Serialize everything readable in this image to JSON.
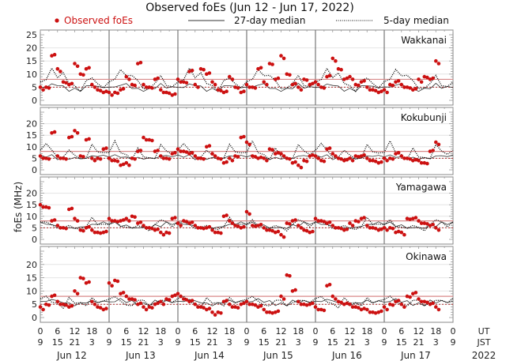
{
  "chart_data": {
    "type": "scatter",
    "title": "Observed foEs (Jun 12 - Jun 17, 2022)",
    "ylabel": "foEs (MHz)",
    "ylim": [
      0,
      25
    ],
    "yticks": [
      "0",
      "5",
      "10",
      "15",
      "20",
      "25"
    ],
    "yticks_lower": [
      "0",
      "5",
      "10",
      "15",
      "20"
    ],
    "legend": {
      "placement": "top",
      "observed": "Observed foEs",
      "median27": "27-day median",
      "median5": "5-day median"
    },
    "colors": {
      "observed": "#cc1111",
      "median27": "#333333",
      "median5": "#000000",
      "upper_ref": "#d88a8a",
      "lower_ref": "#b03030",
      "separator": "#777777",
      "grid": "#e4e4e4"
    },
    "reference_levels_mhz": [
      8,
      5
    ],
    "x_ut_ticks": [
      "0",
      "6",
      "12",
      "18",
      "0",
      "6",
      "12",
      "18",
      "0",
      "6",
      "12",
      "18",
      "0",
      "6",
      "12",
      "18",
      "0",
      "6",
      "12",
      "18",
      "0",
      "6",
      "12",
      "18",
      "0"
    ],
    "x_jst_ticks": [
      "9",
      "15",
      "21",
      "3",
      "9",
      "15",
      "21",
      "3",
      "9",
      "15",
      "21",
      "3",
      "9",
      "15",
      "21",
      "3",
      "9",
      "15",
      "21",
      "3",
      "9",
      "15",
      "21",
      "3",
      "9"
    ],
    "x_ut_label": "UT",
    "x_jst_label": "JST",
    "days": [
      "Jun 12",
      "Jun 13",
      "Jun 14",
      "Jun 15",
      "Jun 16",
      "Jun 17"
    ],
    "year": "2022",
    "observed_hours_sampling": 2,
    "median_hours_sampling": 2,
    "panels": [
      {
        "station": "Wakkanai",
        "observed": [
          5,
          5,
          17,
          12,
          7,
          6,
          14,
          10,
          12,
          6,
          4,
          3,
          3,
          3,
          4,
          9,
          6,
          14,
          6,
          5,
          8,
          4,
          3,
          2,
          8,
          7,
          11,
          6,
          12,
          10,
          7,
          4,
          3,
          9,
          5,
          3,
          6,
          5,
          12,
          7,
          14,
          8,
          17,
          10,
          6,
          5,
          8,
          6,
          7,
          5,
          9,
          16,
          12,
          8,
          9,
          6,
          7,
          5,
          4,
          3,
          4,
          6,
          7,
          6,
          5,
          4,
          8,
          9,
          8,
          15
        ],
        "median27": [
          5,
          5,
          6,
          6,
          5,
          4,
          4,
          4,
          5,
          6,
          5,
          5
        ],
        "median5": [
          7,
          8,
          12,
          9,
          10,
          7,
          5,
          4,
          7,
          9,
          6,
          5
        ]
      },
      {
        "station": "Kokubunji",
        "observed": [
          6,
          5,
          16,
          6,
          5,
          14,
          17,
          6,
          13,
          5,
          5,
          9,
          5,
          4,
          2,
          3,
          5,
          8,
          14,
          13,
          8,
          6,
          5,
          7,
          9,
          8,
          7,
          6,
          5,
          10,
          7,
          5,
          3,
          5,
          6,
          14,
          12,
          6,
          5,
          5,
          9,
          7,
          7,
          5,
          3,
          2,
          4,
          6,
          6,
          4,
          9,
          7,
          5,
          4,
          5,
          6,
          6,
          5,
          4,
          3,
          5,
          5,
          7,
          6,
          5,
          4,
          4,
          3,
          8,
          12
        ],
        "median27": [
          6,
          6,
          6,
          5,
          5,
          5,
          5,
          5,
          5,
          6,
          6,
          6
        ],
        "median5": [
          8,
          12,
          8,
          6,
          5,
          9,
          6,
          5,
          5,
          11,
          8,
          7
        ]
      },
      {
        "station": "Yamagawa",
        "observed": [
          15,
          14,
          8,
          6,
          5,
          13,
          9,
          4,
          5,
          4,
          3,
          3,
          9,
          8,
          8,
          9,
          10,
          7,
          6,
          5,
          4,
          3,
          3,
          9,
          7,
          8,
          7,
          6,
          5,
          5,
          4,
          3,
          10,
          8,
          6,
          5,
          12,
          6,
          6,
          5,
          4,
          3,
          2,
          7,
          8,
          6,
          4,
          3,
          9,
          8,
          7,
          6,
          5,
          4,
          7,
          8,
          9,
          6,
          5,
          4,
          5,
          5,
          3,
          3,
          9,
          9,
          8,
          7,
          6,
          5
        ],
        "median27": [
          7,
          7,
          6,
          6,
          5,
          5,
          5,
          5,
          6,
          6,
          7,
          7
        ],
        "median5": [
          7,
          8,
          6,
          5,
          5,
          6,
          5,
          4,
          6,
          9,
          7,
          6
        ]
      },
      {
        "station": "Okinawa",
        "observed": [
          4,
          5,
          8,
          6,
          5,
          4,
          10,
          15,
          13,
          6,
          4,
          3,
          13,
          14,
          9,
          8,
          7,
          5,
          4,
          4,
          5,
          6,
          7,
          8,
          9,
          7,
          6,
          5,
          4,
          3,
          2,
          2,
          6,
          5,
          4,
          5,
          6,
          5,
          4,
          3,
          2,
          2,
          8,
          16,
          10,
          6,
          5,
          5,
          4,
          3,
          12,
          8,
          6,
          5,
          5,
          4,
          3,
          3,
          2,
          2,
          4,
          5,
          6,
          5,
          8,
          9,
          7,
          6,
          5,
          4
        ],
        "median27": [
          6,
          6,
          7,
          6,
          6,
          5,
          5,
          5,
          6,
          6,
          6,
          6
        ],
        "median5": [
          7,
          8,
          6,
          5,
          4,
          7,
          6,
          5,
          5,
          7,
          6,
          6
        ]
      }
    ]
  }
}
